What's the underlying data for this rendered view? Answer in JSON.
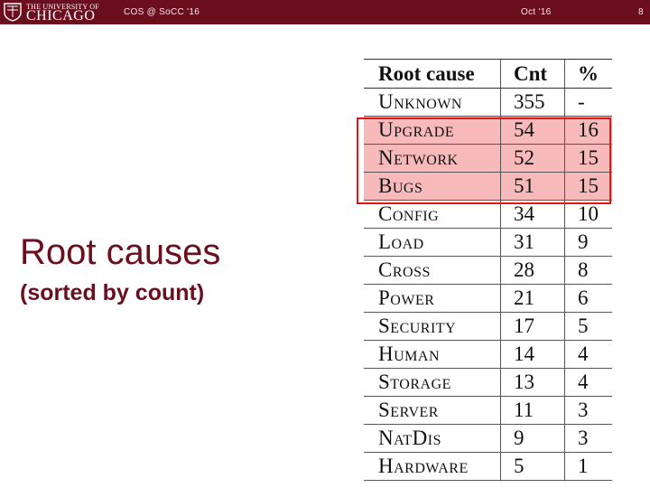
{
  "header": {
    "logo_line1": "THE UNIVERSITY OF",
    "logo_line2": "CHICAGO",
    "left_text": "COS @ SoCC '16",
    "center_text": "Oct '16",
    "page_number": "8",
    "background_color": "#6b0f1f"
  },
  "slide": {
    "title": "Root causes",
    "subtitle": "(sorted by count)",
    "accent_color": "#6b0f1f"
  },
  "table": {
    "columns": [
      "Root cause",
      "Cnt",
      "%"
    ],
    "highlight_color": "#f8b9bb",
    "highlight_border_color": "#e51616",
    "rows": [
      {
        "cause": "Unknown",
        "cnt": "355",
        "pct": "-",
        "highlighted": false
      },
      {
        "cause": "Upgrade",
        "cnt": "54",
        "pct": "16",
        "highlighted": true
      },
      {
        "cause": "Network",
        "cnt": "52",
        "pct": "15",
        "highlighted": true
      },
      {
        "cause": "Bugs",
        "cnt": "51",
        "pct": "15",
        "highlighted": true
      },
      {
        "cause": "Config",
        "cnt": "34",
        "pct": "10",
        "highlighted": false
      },
      {
        "cause": "Load",
        "cnt": "31",
        "pct": "9",
        "highlighted": false
      },
      {
        "cause": "Cross",
        "cnt": "28",
        "pct": "8",
        "highlighted": false
      },
      {
        "cause": "Power",
        "cnt": "21",
        "pct": "6",
        "highlighted": false
      },
      {
        "cause": "Security",
        "cnt": "17",
        "pct": "5",
        "highlighted": false
      },
      {
        "cause": "Human",
        "cnt": "14",
        "pct": "4",
        "highlighted": false
      },
      {
        "cause": "Storage",
        "cnt": "13",
        "pct": "4",
        "highlighted": false
      },
      {
        "cause": "Server",
        "cnt": "11",
        "pct": "3",
        "highlighted": false
      },
      {
        "cause": "NatDis",
        "cnt": "9",
        "pct": "3",
        "highlighted": false
      },
      {
        "cause": "Hardware",
        "cnt": "5",
        "pct": "1",
        "highlighted": false
      }
    ]
  }
}
